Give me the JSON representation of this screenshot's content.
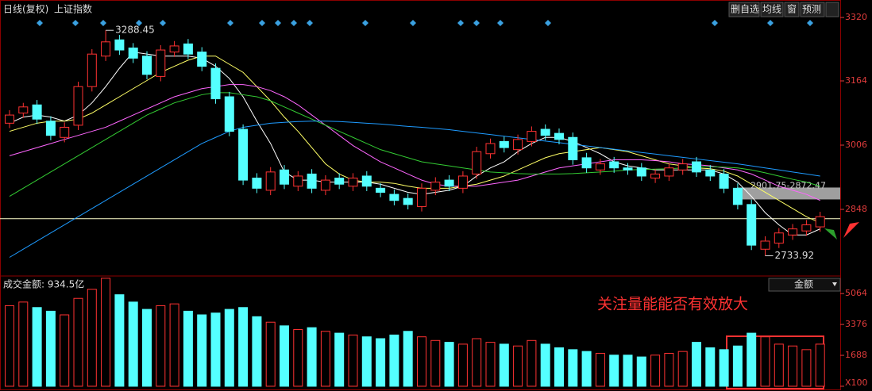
{
  "toolbar": {
    "period": "日线(复权)",
    "symbol": "上证指数",
    "buttons": [
      "删自选",
      "均线",
      "窗",
      "预测"
    ]
  },
  "chart_data": [
    {
      "type": "candlestick",
      "ylim": [
        2690,
        3363
      ],
      "yticks": [
        3320,
        3164,
        3006,
        2848
      ],
      "open": [
        3060,
        3085,
        3105,
        3065,
        3025,
        3055,
        3150,
        3225,
        3265,
        3245,
        3225,
        3175,
        3235,
        3255,
        3235,
        3195,
        3125,
        3045,
        2925,
        2895,
        2945,
        2905,
        2935,
        2895,
        2925,
        2905,
        2930,
        2900,
        2885,
        2875,
        2855,
        2895,
        2920,
        2900,
        2935,
        2985,
        3015,
        2995,
        3015,
        3045,
        3035,
        3025,
        2975,
        2945,
        2965,
        2950,
        2950,
        2925,
        2930,
        2945,
        2965,
        2945,
        2935,
        2900,
        2860,
        2750,
        2765,
        2785,
        2795,
        2805
      ],
      "high": [
        3092,
        3110,
        3117,
        3077,
        3062,
        3162,
        3242,
        3288.45,
        3277,
        3257,
        3237,
        3252,
        3262,
        3267,
        3247,
        3207,
        3137,
        3057,
        2937,
        2952,
        2957,
        2942,
        2947,
        2932,
        2937,
        2937,
        2942,
        2912,
        2897,
        2887,
        2912,
        2927,
        2932,
        2942,
        3002,
        3022,
        3027,
        3032,
        3052,
        3057,
        3047,
        3037,
        2987,
        2972,
        2977,
        2962,
        2962,
        2947,
        2962,
        2972,
        2977,
        2957,
        2947,
        2912,
        2872,
        2782,
        2802,
        2812,
        2822,
        2842
      ],
      "low": [
        3048,
        3073,
        3058,
        3018,
        3013,
        3043,
        3138,
        3213,
        3228,
        3208,
        3168,
        3163,
        3223,
        3218,
        3188,
        3108,
        3028,
        2908,
        2888,
        2883,
        2898,
        2893,
        2888,
        2883,
        2898,
        2893,
        2893,
        2878,
        2858,
        2848,
        2843,
        2883,
        2893,
        2888,
        2923,
        2973,
        2988,
        2983,
        3003,
        3018,
        3008,
        2958,
        2938,
        2933,
        2938,
        2933,
        2918,
        2913,
        2918,
        2933,
        2928,
        2918,
        2888,
        2848,
        2748,
        2733.92,
        2753,
        2773,
        2783,
        2793
      ],
      "close": [
        3080,
        3100,
        3070,
        3030,
        3050,
        3150,
        3230,
        3260,
        3240,
        3220,
        3180,
        3240,
        3250,
        3230,
        3200,
        3120,
        3040,
        2920,
        2900,
        2940,
        2910,
        2930,
        2900,
        2920,
        2910,
        2925,
        2905,
        2890,
        2870,
        2860,
        2900,
        2915,
        2905,
        2930,
        2990,
        3010,
        3000,
        3020,
        3040,
        3030,
        3020,
        2970,
        2950,
        2960,
        2950,
        2945,
        2930,
        2935,
        2950,
        2960,
        2940,
        2930,
        2900,
        2860,
        2760,
        2770,
        2790,
        2800,
        2810,
        2830
      ],
      "series": [
        {
          "color": "#ffffff",
          "values": [
            3060,
            3075,
            3080,
            3075,
            3065,
            3080,
            3110,
            3150,
            3195,
            3235,
            3230,
            3225,
            3225,
            3225,
            3220,
            3200,
            3170,
            3125,
            3065,
            3010,
            2940,
            2920,
            2920,
            2915,
            2915,
            2915,
            2915,
            2910,
            2900,
            2890,
            2885,
            2890,
            2895,
            2905,
            2930,
            2950,
            2965,
            2990,
            3010,
            3025,
            3025,
            3015,
            3000,
            2985,
            2965,
            2955,
            2950,
            2945,
            2945,
            2945,
            2945,
            2945,
            2935,
            2915,
            2880,
            2840,
            2810,
            2785,
            2785,
            2800
          ]
        },
        {
          "color": "#ffff66",
          "values": [
            3040,
            3050,
            3060,
            3065,
            3065,
            3070,
            3085,
            3105,
            3125,
            3145,
            3165,
            3185,
            3200,
            3215,
            3225,
            3225,
            3205,
            3185,
            3150,
            3115,
            3075,
            3040,
            3000,
            2960,
            2935,
            2920,
            2915,
            2915,
            2912,
            2905,
            2900,
            2900,
            2900,
            2905,
            2910,
            2920,
            2930,
            2945,
            2960,
            2975,
            2985,
            2990,
            2995,
            3000,
            2995,
            2990,
            2980,
            2970,
            2960,
            2955,
            2950,
            2948,
            2942,
            2930,
            2910,
            2890,
            2870,
            2850,
            2830,
            2815
          ]
        },
        {
          "color": "#ff66ff",
          "values": [
            2980,
            2990,
            3000,
            3010,
            3020,
            3030,
            3040,
            3050,
            3065,
            3080,
            3095,
            3110,
            3125,
            3135,
            3145,
            3150,
            3155,
            3155,
            3150,
            3140,
            3125,
            3105,
            3080,
            3055,
            3030,
            3005,
            2985,
            2965,
            2950,
            2935,
            2920,
            2910,
            2905,
            2905,
            2905,
            2910,
            2915,
            2920,
            2930,
            2940,
            2950,
            2955,
            2960,
            2965,
            2970,
            2970,
            2970,
            2968,
            2965,
            2960,
            2958,
            2955,
            2950,
            2945,
            2935,
            2920,
            2905,
            2895,
            2885,
            2870
          ]
        },
        {
          "color": "#33cc33",
          "values": [
            2880,
            2900,
            2920,
            2940,
            2960,
            2980,
            3000,
            3020,
            3040,
            3060,
            3080,
            3095,
            3110,
            3120,
            3130,
            3135,
            3135,
            3130,
            3125,
            3115,
            3100,
            3085,
            3070,
            3055,
            3040,
            3025,
            3010,
            2995,
            2985,
            2975,
            2965,
            2960,
            2955,
            2950,
            2945,
            2940,
            2938,
            2936,
            2935,
            2935,
            2935,
            2936,
            2938,
            2940,
            2942,
            2945,
            2946,
            2947,
            2948,
            2950,
            2952,
            2953,
            2952,
            2950,
            2945,
            2938,
            2930,
            2922,
            2915,
            2905
          ]
        },
        {
          "color": "#1e9bff",
          "values": [
            2730,
            2750,
            2770,
            2790,
            2810,
            2830,
            2850,
            2870,
            2890,
            2910,
            2930,
            2950,
            2970,
            2990,
            3010,
            3025,
            3040,
            3050,
            3055,
            3060,
            3062,
            3064,
            3065,
            3065,
            3064,
            3062,
            3060,
            3058,
            3055,
            3052,
            3050,
            3047,
            3044,
            3040,
            3036,
            3032,
            3028,
            3024,
            3020,
            3016,
            3012,
            3008,
            3004,
            3000,
            2996,
            2992,
            2988,
            2984,
            2980,
            2976,
            2972,
            2968,
            2964,
            2960,
            2955,
            2950,
            2945,
            2940,
            2935,
            2930
          ]
        }
      ],
      "hline": 2825,
      "zone": {
        "high": 2901.75,
        "low": 2872.47,
        "label": "2901.75-2872.47"
      },
      "max_label": "3288.45",
      "min_label": "2733.92"
    },
    {
      "type": "bar",
      "title": "成交金额: 934.5亿",
      "selector": "金额",
      "annotation": "关注量能能否有效放大",
      "ylim": [
        0,
        5980
      ],
      "yticks": [
        {
          "value": 0,
          "label": "X100"
        },
        1688,
        3376,
        5064
      ],
      "values": [
        4400,
        4600,
        4300,
        4100,
        3900,
        4800,
        5300,
        5900,
        5000,
        4600,
        4200,
        4400,
        4500,
        4100,
        3900,
        4000,
        4200,
        4300,
        3800,
        3500,
        3300,
        3100,
        3200,
        3000,
        2900,
        2800,
        2700,
        2600,
        2800,
        3000,
        2700,
        2500,
        2400,
        2300,
        2600,
        2400,
        2300,
        2200,
        2500,
        2300,
        2100,
        2000,
        1900,
        1800,
        1700,
        1700,
        1600,
        1700,
        1800,
        1900,
        2400,
        2100,
        2000,
        2200,
        2900,
        2700,
        2300,
        2200,
        2000,
        2300
      ]
    }
  ]
}
